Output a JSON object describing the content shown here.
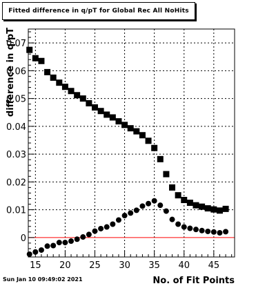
{
  "chart_data": {
    "type": "scatter",
    "title": "Fitted difference in q/pT  for Global Rec All NoHits",
    "xlabel": "No. of Fit Points",
    "ylabel": "difference in q/pT",
    "xlim": [
      13.8,
      48.5
    ],
    "ylim": [
      -0.007,
      0.075
    ],
    "x_ticks": [
      15,
      20,
      25,
      30,
      35,
      40,
      45
    ],
    "y_ticks": [
      0,
      0.01,
      0.02,
      0.03,
      0.04,
      0.05,
      0.06,
      0.07
    ],
    "y_tick_labels": [
      "0",
      "0.01",
      "0.02",
      "0.03",
      "0.04",
      "0.05",
      "0.06",
      "0.07"
    ],
    "grid": true,
    "reference_line": {
      "y": 0,
      "color": "#ff0000"
    },
    "series": [
      {
        "marker": "square",
        "points": [
          [
            14,
            0.0675
          ],
          [
            15,
            0.0645
          ],
          [
            16,
            0.0635
          ],
          [
            17,
            0.0595
          ],
          [
            18,
            0.0575
          ],
          [
            19,
            0.0557
          ],
          [
            20,
            0.0542
          ],
          [
            21,
            0.0527
          ],
          [
            22,
            0.0512
          ],
          [
            23,
            0.05
          ],
          [
            24,
            0.0483
          ],
          [
            25,
            0.0468
          ],
          [
            26,
            0.0455
          ],
          [
            27,
            0.0442
          ],
          [
            28,
            0.0432
          ],
          [
            29,
            0.0418
          ],
          [
            30,
            0.0405
          ],
          [
            31,
            0.0393
          ],
          [
            32,
            0.0382
          ],
          [
            33,
            0.0368
          ],
          [
            34,
            0.0348
          ],
          [
            35,
            0.0322
          ],
          [
            36,
            0.0282
          ],
          [
            37,
            0.0228
          ],
          [
            38,
            0.018
          ],
          [
            39,
            0.0152
          ],
          [
            40,
            0.0135
          ],
          [
            41,
            0.0125
          ],
          [
            42,
            0.0116
          ],
          [
            43,
            0.0111
          ],
          [
            44,
            0.0105
          ],
          [
            45,
            0.0101
          ],
          [
            46,
            0.0097
          ],
          [
            47,
            0.0103
          ]
        ]
      },
      {
        "marker": "circle",
        "points": [
          [
            14,
            -0.006
          ],
          [
            15,
            -0.0052
          ],
          [
            16,
            -0.0045
          ],
          [
            17,
            -0.0031
          ],
          [
            18,
            -0.0029
          ],
          [
            19,
            -0.0018
          ],
          [
            20,
            -0.0018
          ],
          [
            21,
            -0.0013
          ],
          [
            22,
            -0.0006
          ],
          [
            23,
            0.0002
          ],
          [
            24,
            0.0011
          ],
          [
            25,
            0.0023
          ],
          [
            26,
            0.0032
          ],
          [
            27,
            0.0038
          ],
          [
            28,
            0.0048
          ],
          [
            29,
            0.0063
          ],
          [
            30,
            0.0079
          ],
          [
            31,
            0.0088
          ],
          [
            32,
            0.0098
          ],
          [
            33,
            0.0113
          ],
          [
            34,
            0.0122
          ],
          [
            35,
            0.0132
          ],
          [
            36,
            0.0116
          ],
          [
            37,
            0.0095
          ],
          [
            38,
            0.0065
          ],
          [
            39,
            0.0048
          ],
          [
            40,
            0.0038
          ],
          [
            41,
            0.0033
          ],
          [
            42,
            0.0029
          ],
          [
            43,
            0.0025
          ],
          [
            44,
            0.0022
          ],
          [
            45,
            0.002
          ],
          [
            46,
            0.0017
          ],
          [
            47,
            0.0021
          ]
        ]
      }
    ]
  },
  "footer": {
    "timestamp": "Sun Jan 10 09:49:02 2021"
  }
}
